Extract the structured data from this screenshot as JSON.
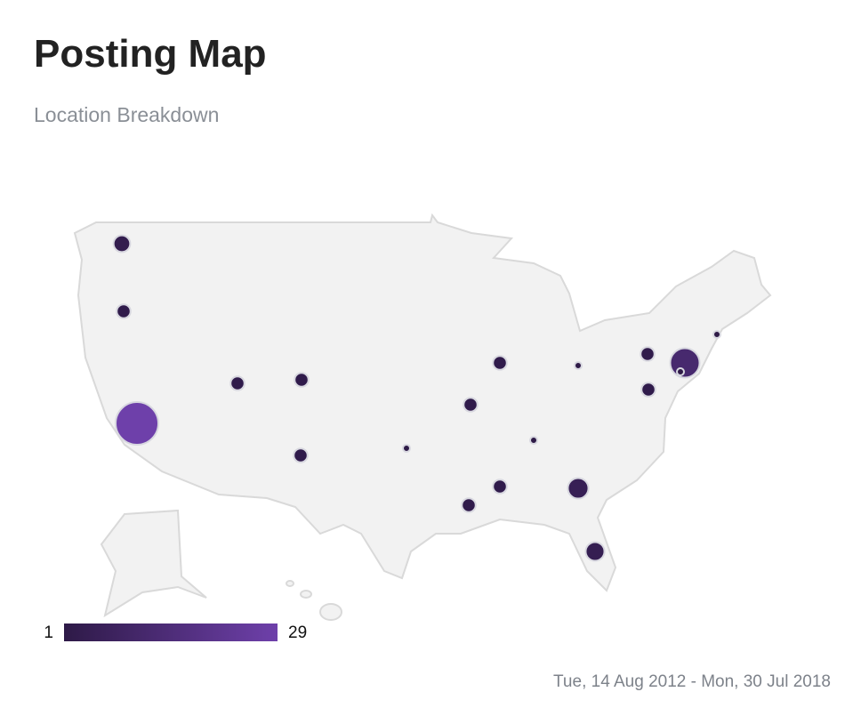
{
  "header": {
    "title": "Posting Map",
    "subtitle": "Location Breakdown"
  },
  "map": {
    "color_min": "#2e1a47",
    "color_max": "#6e40aa",
    "legend": {
      "min": 1,
      "max": 29
    },
    "values": [
      3,
      2,
      29,
      2,
      2,
      2,
      1,
      2,
      2,
      1,
      1,
      2,
      2,
      5,
      4,
      2,
      2,
      12,
      1,
      1
    ]
  },
  "footer": {
    "date_range": "Tue, 14 Aug 2012 - Mon, 30 Jul 2018"
  }
}
